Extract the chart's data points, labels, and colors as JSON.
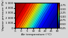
{
  "title": "",
  "xlabel": "Air temperature (°C)",
  "ylabel": "Vapour pressure (Pa)",
  "xlim": [
    -5,
    30
  ],
  "ylim": [
    0,
    5000
  ],
  "xticks": [
    -5,
    0,
    5,
    10,
    15,
    20,
    25,
    30
  ],
  "yticks": [
    0,
    1000,
    2000,
    3000,
    4000,
    5000
  ],
  "ytick_labels": [
    "0",
    "1 000",
    "2 000",
    "3 000",
    "4 000",
    "5 000"
  ],
  "clim_min": 0.25,
  "clim_max": 1.9,
  "colorbar_ticks": [
    0.25,
    0.5,
    0.75,
    1.0,
    1.25,
    1.5,
    1.75
  ],
  "colorbar_ticklabels": [
    "0.25",
    "0.50",
    "0.75",
    "1.00",
    "1.25",
    "1.50",
    "1.75"
  ],
  "figsize": [
    1.0,
    0.56
  ],
  "dpi": 100,
  "background_color": "#d8d8d8"
}
